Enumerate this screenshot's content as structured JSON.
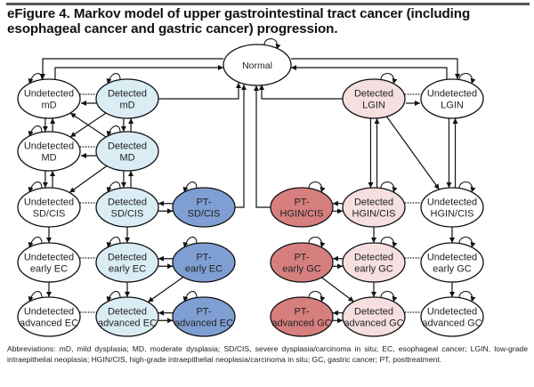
{
  "title": "eFigure 4. Markov model of upper gastrointestinal tract cancer (including esophageal cancer and gastric cancer) progression.",
  "abbreviations": "Abbreviations: mD, mild dysplasia; MD, moderate dysplasia; SD/CIS, severe dysplasia/carcinoma in situ; EC, esophageal cancer; LGIN, low-grade intraepithelial neoplasia; HGIN/CIS, high-grade intraepithelial neoplasia/carcinoma in situ; GC, gastric cancer; PT, posttreatment.",
  "colors": {
    "undetected": "#ffffff",
    "detected_esophageal": "#daedf5",
    "pt_esophageal": "#7f9fd3",
    "detected_gastric": "#f5dfdf",
    "pt_gastric": "#d77f7f",
    "normal": "#ffffff"
  },
  "nodes": {
    "normal": {
      "lines": [
        "Normal"
      ],
      "type": "normal"
    },
    "u_mD": {
      "lines": [
        "Undetected",
        "mD"
      ],
      "type": "undetected"
    },
    "d_mD": {
      "lines": [
        "Detected",
        "mD"
      ],
      "type": "detected_esophageal"
    },
    "u_MD": {
      "lines": [
        "Undetected",
        "MD"
      ],
      "type": "undetected"
    },
    "d_MD": {
      "lines": [
        "Detected",
        "MD"
      ],
      "type": "detected_esophageal"
    },
    "u_SD": {
      "lines": [
        "Undetected",
        "SD/CIS"
      ],
      "type": "undetected"
    },
    "d_SD": {
      "lines": [
        "Detected",
        "SD/CIS"
      ],
      "type": "detected_esophageal"
    },
    "pt_SD": {
      "lines": [
        "PT-",
        "SD/CIS"
      ],
      "type": "pt_esophageal"
    },
    "u_eEC": {
      "lines": [
        "Undetected",
        "early EC"
      ],
      "type": "undetected"
    },
    "d_eEC": {
      "lines": [
        "Detected",
        "early EC"
      ],
      "type": "detected_esophageal"
    },
    "pt_eEC": {
      "lines": [
        "PT-",
        "early EC"
      ],
      "type": "pt_esophageal"
    },
    "u_aEC": {
      "lines": [
        "Undetected",
        "advanced EC"
      ],
      "type": "undetected"
    },
    "d_aEC": {
      "lines": [
        "Detected",
        "advanced EC"
      ],
      "type": "detected_esophageal"
    },
    "pt_aEC": {
      "lines": [
        "PT-",
        "advanced EC"
      ],
      "type": "pt_esophageal"
    },
    "d_LGIN": {
      "lines": [
        "Detected",
        "LGIN"
      ],
      "type": "detected_gastric"
    },
    "u_LGIN": {
      "lines": [
        "Undetected",
        "LGIN"
      ],
      "type": "undetected"
    },
    "pt_HGIN": {
      "lines": [
        "PT-",
        "HGIN/CIS"
      ],
      "type": "pt_gastric"
    },
    "d_HGIN": {
      "lines": [
        "Detected",
        "HGIN/CIS"
      ],
      "type": "detected_gastric"
    },
    "u_HGIN": {
      "lines": [
        "Undetected",
        "HGIN/CIS"
      ],
      "type": "undetected"
    },
    "pt_eGC": {
      "lines": [
        "PT-",
        "early GC"
      ],
      "type": "pt_gastric"
    },
    "d_eGC": {
      "lines": [
        "Detected",
        "early GC"
      ],
      "type": "detected_gastric"
    },
    "u_eGC": {
      "lines": [
        "Undetected",
        "early GC"
      ],
      "type": "undetected"
    },
    "pt_aGC": {
      "lines": [
        "PT-",
        "advanced GC"
      ],
      "type": "pt_gastric"
    },
    "d_aGC": {
      "lines": [
        "Detected",
        "advanced GC"
      ],
      "type": "detected_gastric"
    },
    "u_aGC": {
      "lines": [
        "Undetected",
        "advanced GC"
      ],
      "type": "undetected"
    }
  }
}
